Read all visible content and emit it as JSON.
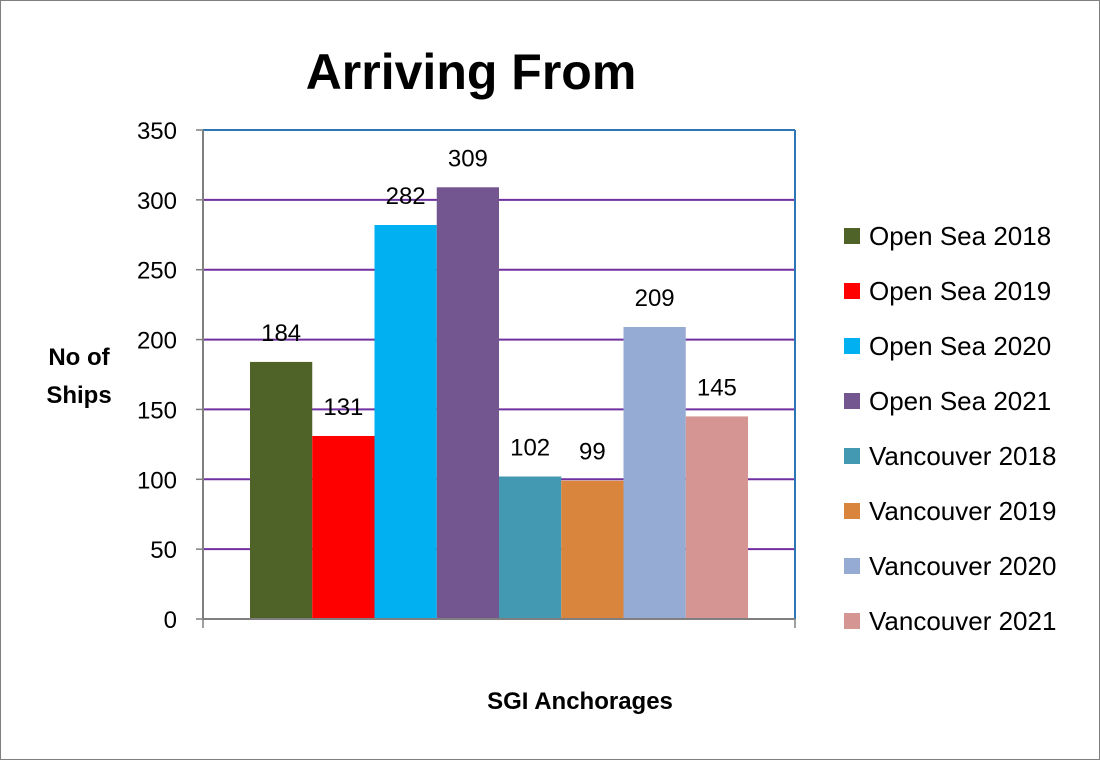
{
  "chart_data": {
    "type": "bar",
    "title": "Arriving From",
    "xlabel": "SGI Anchorages",
    "ylabel": "No of Ships",
    "ylabel_lines": [
      "No of",
      "Ships"
    ],
    "ylim": [
      0,
      350
    ],
    "yticks": [
      0,
      50,
      100,
      150,
      200,
      250,
      300,
      350
    ],
    "grid": true,
    "legend_position": "right",
    "categories": [
      ""
    ],
    "series": [
      {
        "name": "Open Sea 2018",
        "values": [
          184
        ],
        "color": "#4f6228"
      },
      {
        "name": "Open Sea 2019",
        "values": [
          131
        ],
        "color": "#ff0000"
      },
      {
        "name": "Open Sea 2020",
        "values": [
          282
        ],
        "color": "#00b0f0"
      },
      {
        "name": "Open Sea 2021",
        "values": [
          309
        ],
        "color": "#73568f"
      },
      {
        "name": "Vancouver 2018",
        "values": [
          102
        ],
        "color": "#4399b1"
      },
      {
        "name": "Vancouver 2019",
        "values": [
          99
        ],
        "color": "#d9853e"
      },
      {
        "name": "Vancouver 2020",
        "values": [
          209
        ],
        "color": "#95abd4"
      },
      {
        "name": "Vancouver 2021",
        "values": [
          145
        ],
        "color": "#d59593"
      }
    ],
    "colors": {
      "gridline": "#7030a0",
      "plot_border": "#2e75b6",
      "axis": "#7f7f7f"
    }
  }
}
